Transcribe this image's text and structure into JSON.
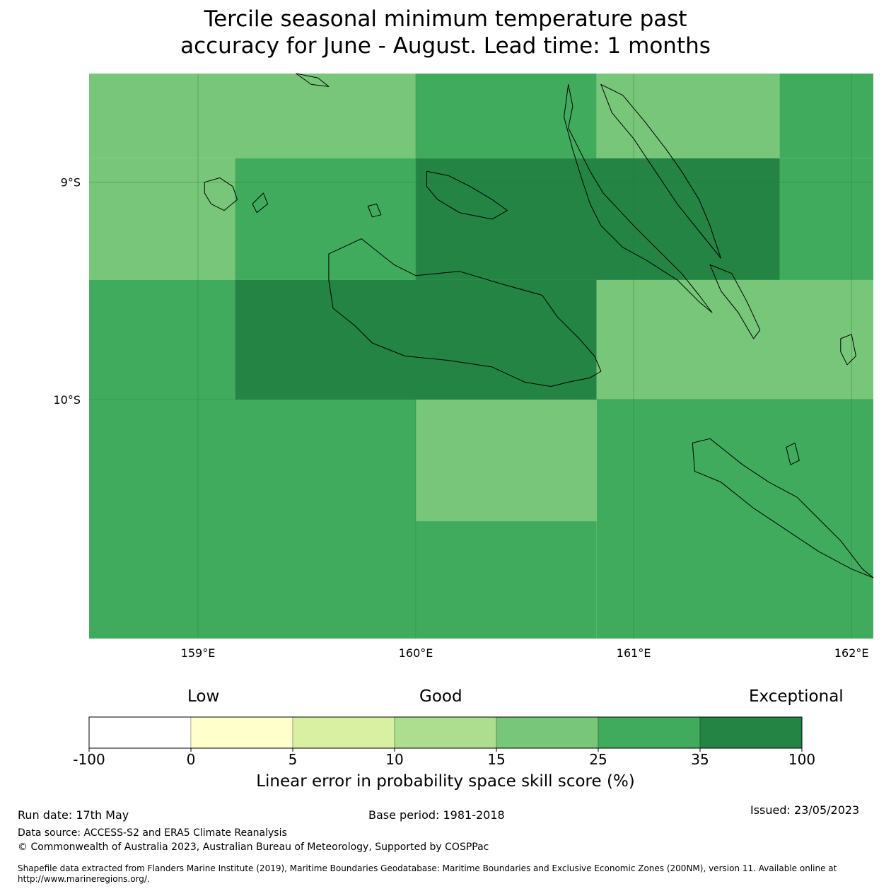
{
  "title_line1": "Tercile seasonal minimum temperature past",
  "title_line2": "accuracy for June - August. Lead time: 1 months",
  "map": {
    "lon_range": [
      158.5,
      162.1
    ],
    "lat_range": [
      -11.1,
      -8.5
    ],
    "lon_ticks": [
      {
        "value": 159,
        "label": "159°E"
      },
      {
        "value": 160,
        "label": "160°E"
      },
      {
        "value": 161,
        "label": "161°E"
      },
      {
        "value": 162,
        "label": "162°E"
      }
    ],
    "lat_ticks": [
      {
        "value": -9,
        "label": "9°S"
      },
      {
        "value": -10,
        "label": "10°S"
      }
    ],
    "cells": [
      {
        "lon": [
          158.5,
          160.0
        ],
        "lat": [
          -8.5,
          -8.89
        ],
        "bin": 4
      },
      {
        "lon": [
          160.0,
          160.83
        ],
        "lat": [
          -8.5,
          -8.89
        ],
        "bin": 5
      },
      {
        "lon": [
          160.83,
          161.67
        ],
        "lat": [
          -8.5,
          -8.89
        ],
        "bin": 4
      },
      {
        "lon": [
          161.67,
          162.1
        ],
        "lat": [
          -8.5,
          -8.89
        ],
        "bin": 5
      },
      {
        "lon": [
          158.5,
          159.17
        ],
        "lat": [
          -8.89,
          -9.45
        ],
        "bin": 4
      },
      {
        "lon": [
          159.17,
          160.0
        ],
        "lat": [
          -8.89,
          -9.45
        ],
        "bin": 5
      },
      {
        "lon": [
          160.0,
          161.67
        ],
        "lat": [
          -8.89,
          -9.45
        ],
        "bin": 6
      },
      {
        "lon": [
          161.67,
          162.1
        ],
        "lat": [
          -8.89,
          -9.45
        ],
        "bin": 5
      },
      {
        "lon": [
          158.5,
          159.17
        ],
        "lat": [
          -9.45,
          -10.0
        ],
        "bin": 5
      },
      {
        "lon": [
          159.17,
          160.83
        ],
        "lat": [
          -9.45,
          -10.0
        ],
        "bin": 6
      },
      {
        "lon": [
          160.83,
          162.1
        ],
        "lat": [
          -9.45,
          -10.0
        ],
        "bin": 4
      },
      {
        "lon": [
          158.5,
          160.0
        ],
        "lat": [
          -10.0,
          -11.1
        ],
        "bin": 5
      },
      {
        "lon": [
          160.0,
          160.83
        ],
        "lat": [
          -10.0,
          -10.56
        ],
        "bin": 4
      },
      {
        "lon": [
          160.83,
          162.1
        ],
        "lat": [
          -10.0,
          -11.1
        ],
        "bin": 5
      },
      {
        "lon": [
          160.0,
          160.83
        ],
        "lat": [
          -10.56,
          -11.1
        ],
        "bin": 5
      }
    ],
    "coastlines": [
      {
        "name": "guadalcanal",
        "points": [
          [
            159.6,
            -9.33
          ],
          [
            159.75,
            -9.26
          ],
          [
            159.9,
            -9.38
          ],
          [
            160.0,
            -9.43
          ],
          [
            160.2,
            -9.41
          ],
          [
            160.4,
            -9.47
          ],
          [
            160.58,
            -9.52
          ],
          [
            160.65,
            -9.62
          ],
          [
            160.75,
            -9.72
          ],
          [
            160.82,
            -9.8
          ],
          [
            160.85,
            -9.87
          ],
          [
            160.8,
            -9.9
          ],
          [
            160.7,
            -9.92
          ],
          [
            160.62,
            -9.94
          ],
          [
            160.5,
            -9.92
          ],
          [
            160.35,
            -9.85
          ],
          [
            160.15,
            -9.82
          ],
          [
            159.95,
            -9.8
          ],
          [
            159.8,
            -9.74
          ],
          [
            159.72,
            -9.66
          ],
          [
            159.62,
            -9.58
          ],
          [
            159.6,
            -9.45
          ]
        ]
      },
      {
        "name": "florida-islands",
        "points": [
          [
            160.05,
            -8.95
          ],
          [
            160.15,
            -8.97
          ],
          [
            160.25,
            -9.02
          ],
          [
            160.35,
            -9.08
          ],
          [
            160.42,
            -9.13
          ],
          [
            160.35,
            -9.17
          ],
          [
            160.2,
            -9.14
          ],
          [
            160.1,
            -9.08
          ],
          [
            160.05,
            -9.02
          ]
        ]
      },
      {
        "name": "russell-islands",
        "points": [
          [
            159.03,
            -9.0
          ],
          [
            159.1,
            -8.98
          ],
          [
            159.16,
            -9.02
          ],
          [
            159.18,
            -9.08
          ],
          [
            159.12,
            -9.13
          ],
          [
            159.06,
            -9.1
          ],
          [
            159.03,
            -9.05
          ]
        ]
      },
      {
        "name": "malaita",
        "points": [
          [
            160.7,
            -8.55
          ],
          [
            160.72,
            -8.65
          ],
          [
            160.7,
            -8.75
          ],
          [
            160.75,
            -8.85
          ],
          [
            160.8,
            -8.95
          ],
          [
            160.86,
            -9.05
          ],
          [
            161.0,
            -9.2
          ],
          [
            161.12,
            -9.32
          ],
          [
            161.22,
            -9.42
          ],
          [
            161.3,
            -9.52
          ],
          [
            161.36,
            -9.6
          ],
          [
            161.3,
            -9.55
          ],
          [
            161.2,
            -9.45
          ],
          [
            161.06,
            -9.36
          ],
          [
            160.95,
            -9.3
          ],
          [
            160.85,
            -9.2
          ],
          [
            160.8,
            -9.1
          ],
          [
            160.76,
            -8.98
          ],
          [
            160.72,
            -8.85
          ],
          [
            160.68,
            -8.7
          ]
        ]
      },
      {
        "name": "north-malaita",
        "points": [
          [
            160.85,
            -8.55
          ],
          [
            160.95,
            -8.6
          ],
          [
            161.05,
            -8.72
          ],
          [
            161.15,
            -8.85
          ],
          [
            161.22,
            -8.95
          ],
          [
            161.3,
            -9.08
          ],
          [
            161.35,
            -9.2
          ],
          [
            161.4,
            -9.35
          ],
          [
            161.32,
            -9.25
          ],
          [
            161.2,
            -9.1
          ],
          [
            161.1,
            -8.95
          ],
          [
            161.0,
            -8.8
          ],
          [
            160.9,
            -8.68
          ]
        ]
      },
      {
        "name": "small-malaita",
        "points": [
          [
            161.35,
            -9.38
          ],
          [
            161.45,
            -9.42
          ],
          [
            161.52,
            -9.55
          ],
          [
            161.58,
            -9.68
          ],
          [
            161.55,
            -9.72
          ],
          [
            161.48,
            -9.6
          ],
          [
            161.4,
            -9.5
          ]
        ]
      },
      {
        "name": "makira",
        "points": [
          [
            161.27,
            -10.2
          ],
          [
            161.35,
            -10.18
          ],
          [
            161.5,
            -10.3
          ],
          [
            161.62,
            -10.38
          ],
          [
            161.75,
            -10.45
          ],
          [
            161.85,
            -10.55
          ],
          [
            161.95,
            -10.65
          ],
          [
            162.05,
            -10.78
          ],
          [
            162.1,
            -10.82
          ],
          [
            162.0,
            -10.78
          ],
          [
            161.85,
            -10.7
          ],
          [
            161.7,
            -10.6
          ],
          [
            161.55,
            -10.5
          ],
          [
            161.4,
            -10.38
          ],
          [
            161.28,
            -10.33
          ]
        ]
      },
      {
        "name": "ulawa",
        "points": [
          [
            161.95,
            -9.72
          ],
          [
            162.0,
            -9.7
          ],
          [
            162.02,
            -9.8
          ],
          [
            161.98,
            -9.84
          ],
          [
            161.95,
            -9.78
          ]
        ]
      },
      {
        "name": "mbanika",
        "points": [
          [
            159.25,
            -9.1
          ],
          [
            159.3,
            -9.05
          ],
          [
            159.32,
            -9.1
          ],
          [
            159.27,
            -9.14
          ]
        ]
      },
      {
        "name": "savo",
        "points": [
          [
            159.78,
            -9.11
          ],
          [
            159.82,
            -9.1
          ],
          [
            159.84,
            -9.15
          ],
          [
            159.8,
            -9.16
          ]
        ]
      },
      {
        "name": "ugi",
        "points": [
          [
            161.7,
            -10.22
          ],
          [
            161.74,
            -10.2
          ],
          [
            161.76,
            -10.28
          ],
          [
            161.72,
            -10.3
          ]
        ]
      },
      {
        "name": "nggela-north",
        "points": [
          [
            159.45,
            -8.5
          ],
          [
            159.55,
            -8.52
          ],
          [
            159.6,
            -8.56
          ],
          [
            159.52,
            -8.55
          ]
        ]
      }
    ]
  },
  "colorbar": {
    "words": {
      "low": "Low",
      "good": "Good",
      "exceptional": "Exceptional"
    },
    "bins": [
      {
        "color": "#ffffff"
      },
      {
        "color": "#ffffcc"
      },
      {
        "color": "#d9f0a3"
      },
      {
        "color": "#addd8e"
      },
      {
        "color": "#78c679"
      },
      {
        "color": "#41ab5d"
      },
      {
        "color": "#238443"
      }
    ],
    "tick_labels": [
      "-100",
      "0",
      "5",
      "10",
      "15",
      "25",
      "35",
      "100"
    ],
    "label": "Linear error in probability space skill score (%)"
  },
  "footer": {
    "run_date": "Run date: 17th May",
    "base_period": "Base period: 1981-2018",
    "issued": "Issued: 23/05/2023",
    "data_source": "Data source: ACCESS-S2 and ERA5 Climate Reanalysis",
    "copyright": "© Commonwealth of Australia 2023, Australian Bureau of Meteorology, Supported by COSPPac",
    "shapefile_line1": "Shapefile data extracted from Flanders Marine Institute (2019), Maritime Boundaries Geodatabase: Maritime Boundaries and Exclusive Economic Zones (200NM), version 11. Available online at",
    "shapefile_line2": "http://www.marineregions.org/."
  }
}
